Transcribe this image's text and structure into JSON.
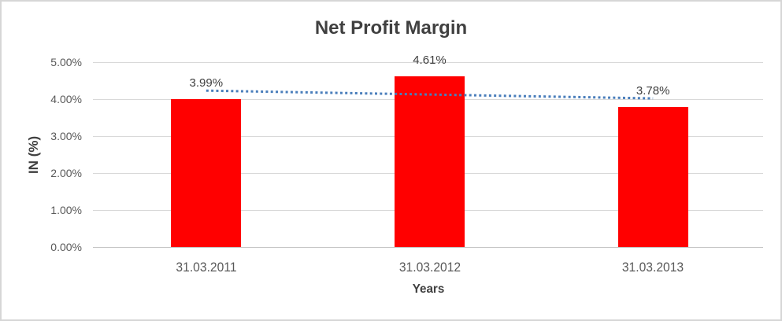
{
  "chart_data": {
    "type": "bar",
    "title": "Net Profit Margin",
    "xlabel": "Years",
    "ylabel": "IN (%)",
    "categories": [
      "31.03.2011",
      "31.03.2012",
      "31.03.2013"
    ],
    "values": [
      3.99,
      4.61,
      3.78
    ],
    "data_labels": [
      "3.99%",
      "4.61%",
      "3.78%"
    ],
    "ylim": [
      0,
      5
    ],
    "yticks": [
      {
        "value": 5,
        "label": "5.00%"
      },
      {
        "value": 4,
        "label": "4.00%"
      },
      {
        "value": 3,
        "label": "3.00%"
      },
      {
        "value": 2,
        "label": "2.00%"
      },
      {
        "value": 1,
        "label": "1.00%"
      },
      {
        "value": 0,
        "label": "0.00%"
      }
    ],
    "grid": true,
    "legend": "none",
    "bar_color": "#FF0000",
    "trendline": {
      "type": "linear",
      "style": "dotted",
      "color": "#4A7EBB",
      "values": [
        4.23,
        4.02
      ]
    }
  },
  "colors": {
    "background": "#FFFFFF",
    "frame_border": "#D6D6D6",
    "gridline": "#D9D9D9",
    "axis_line": "#C6C6C6",
    "title_text": "#404040",
    "tick_text": "#595959",
    "label_text": "#404040"
  }
}
